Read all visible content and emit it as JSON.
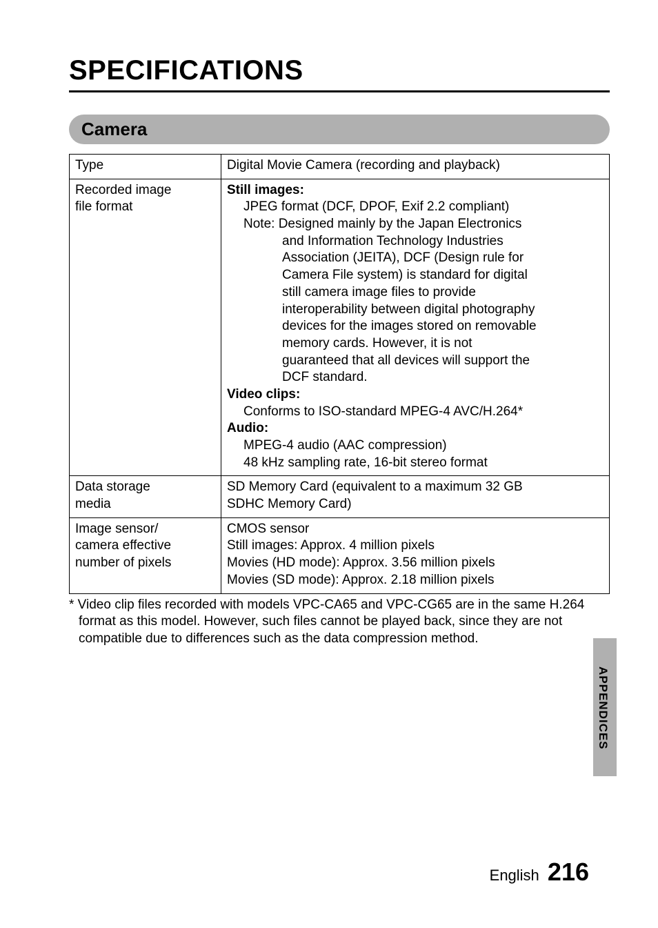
{
  "page": {
    "title": "SPECIFICATIONS",
    "section_header": "Camera",
    "footer_lang": "English",
    "footer_page": "216",
    "side_tab": "APPENDICES",
    "colors": {
      "section_bg": "#b0b0b0",
      "tab_bg": "#b0b0b0",
      "text": "#000000",
      "bg": "#ffffff",
      "border": "#000000"
    }
  },
  "table": {
    "rows": [
      {
        "label": "Type",
        "value_plain": "Digital Movie Camera (recording and playback)"
      },
      {
        "label_lines": [
          "Recorded image",
          "file format"
        ],
        "blocks": [
          {
            "bold": "Still images:"
          },
          {
            "indent": 1,
            "text": "JPEG format (DCF, DPOF, Exif 2.2 compliant)"
          },
          {
            "indent": 1,
            "text": "Note: Designed mainly by the Japan Electronics"
          },
          {
            "indent": 2,
            "text": "and Information Technology Industries"
          },
          {
            "indent": 2,
            "text": "Association (JEITA), DCF (Design rule for"
          },
          {
            "indent": 2,
            "text": "Camera File system) is standard for digital"
          },
          {
            "indent": 2,
            "text": "still camera image files to provide"
          },
          {
            "indent": 2,
            "text": "interoperability between digital photography"
          },
          {
            "indent": 2,
            "text": "devices for the images stored on removable"
          },
          {
            "indent": 2,
            "text": "memory cards. However, it is not"
          },
          {
            "indent": 2,
            "text": "guaranteed that all devices will support the"
          },
          {
            "indent": 2,
            "text": "DCF standard."
          },
          {
            "bold": "Video clips:"
          },
          {
            "indent": 1,
            "text": "Conforms to ISO-standard MPEG-4 AVC/H.264*"
          },
          {
            "bold": "Audio:"
          },
          {
            "indent": 1,
            "text": "MPEG-4 audio (AAC compression)"
          },
          {
            "indent": 1,
            "text": "48 kHz sampling rate, 16-bit stereo format"
          }
        ]
      },
      {
        "label_lines": [
          "Data storage",
          "media"
        ],
        "value_lines": [
          "SD Memory Card (equivalent to a maximum 32 GB",
          "SDHC Memory Card)"
        ]
      },
      {
        "label_lines": [
          "Image sensor/",
          "camera effective",
          "number of pixels"
        ],
        "value_lines": [
          "CMOS sensor",
          "Still images: Approx. 4 million pixels",
          "Movies (HD mode):  Approx. 3.56 million pixels",
          "Movies (SD mode):  Approx. 2.18 million pixels"
        ]
      }
    ]
  },
  "footnote": "* Video clip files recorded with models VPC-CA65 and VPC-CG65 are in the same H.264 format as this model. However, such files cannot be played back, since they are not compatible due to differences such as the data compression method."
}
